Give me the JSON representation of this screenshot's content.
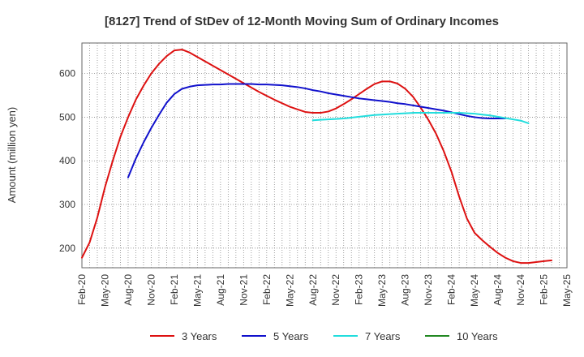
{
  "chart_data": {
    "type": "line",
    "title": "[8127]  Trend of StDev of 12-Month Moving Sum of Ordinary Incomes",
    "xlabel": "",
    "ylabel": "Amount (million yen)",
    "ylim": [
      155,
      670
    ],
    "yticks": [
      200,
      300,
      400,
      500,
      600
    ],
    "grid": true,
    "legend_position": "bottom",
    "x_start": "Feb-20",
    "x_end": "May-25",
    "xtick_labels": [
      "Feb-20",
      "May-20",
      "Aug-20",
      "Nov-20",
      "Feb-21",
      "May-21",
      "Aug-21",
      "Nov-21",
      "Feb-22",
      "May-22",
      "Aug-22",
      "Nov-22",
      "Feb-23",
      "May-23",
      "Aug-23",
      "Nov-23",
      "Feb-24",
      "May-24",
      "Aug-24",
      "Nov-24",
      "Feb-25",
      "May-25"
    ],
    "series": [
      {
        "name": "3 Years",
        "color": "#dd1111",
        "start_index": 0,
        "values": [
          178,
          213,
          270,
          340,
          400,
          455,
          500,
          540,
          572,
          600,
          622,
          640,
          653,
          655,
          648,
          638,
          628,
          618,
          608,
          598,
          588,
          578,
          568,
          558,
          549,
          540,
          532,
          524,
          518,
          512,
          510,
          510,
          513,
          520,
          530,
          541,
          553,
          565,
          576,
          582,
          582,
          577,
          565,
          547,
          522,
          494,
          462,
          422,
          375,
          318,
          268,
          235,
          218,
          203,
          189,
          178,
          170,
          166,
          166,
          168,
          170,
          172
        ],
        "labels_visible": false
      },
      {
        "name": "5 Years",
        "color": "#1111cc",
        "start_index": 6,
        "values": [
          362,
          405,
          442,
          475,
          505,
          533,
          553,
          565,
          570,
          573,
          574,
          575,
          575,
          576,
          576,
          576,
          576,
          575,
          575,
          574,
          573,
          571,
          569,
          566,
          562,
          559,
          555,
          552,
          549,
          546,
          543,
          541,
          539,
          537,
          535,
          532,
          530,
          527,
          524,
          521,
          518,
          515,
          511,
          507,
          503,
          500,
          498,
          497,
          497,
          497
        ],
        "labels_visible": false
      },
      {
        "name": "7 Years",
        "color": "#22dddd",
        "start_index": 30,
        "values": [
          493,
          494,
          495,
          496,
          497,
          499,
          501,
          503,
          505,
          506,
          507,
          508,
          509,
          510,
          510,
          510,
          510,
          510,
          510,
          510,
          509,
          508,
          506,
          504,
          501,
          498,
          495,
          492,
          486
        ],
        "labels_visible": false
      },
      {
        "name": "10 Years",
        "color": "#228822",
        "start_index": 0,
        "values": [],
        "labels_visible": false
      }
    ]
  }
}
